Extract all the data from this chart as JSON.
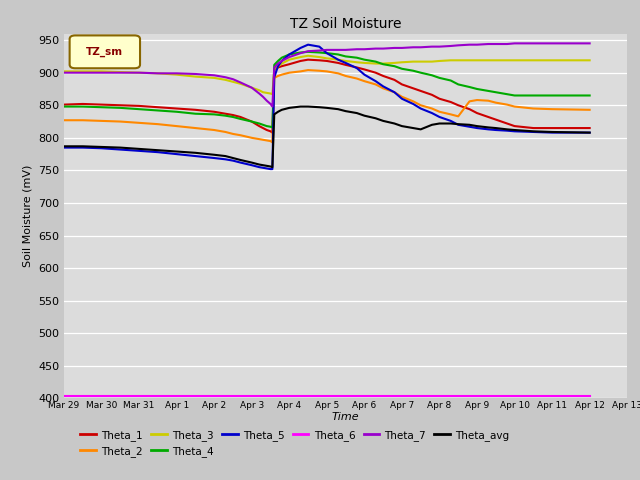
{
  "title": "TZ Soil Moisture",
  "xlabel": "Time",
  "ylabel": "Soil Moisture (mV)",
  "ylim": [
    400,
    960
  ],
  "yticks": [
    400,
    450,
    500,
    550,
    600,
    650,
    700,
    750,
    800,
    850,
    900,
    950
  ],
  "fig_bg": "#c8c8c8",
  "plot_bg": "#e0e0e0",
  "legend_label": "TZ_sm",
  "series": {
    "Theta_1": {
      "color": "#cc0000",
      "points": [
        [
          0,
          851
        ],
        [
          0.5,
          852
        ],
        [
          1.0,
          851
        ],
        [
          1.5,
          850
        ],
        [
          2.0,
          849
        ],
        [
          2.5,
          847
        ],
        [
          3.0,
          845
        ],
        [
          3.5,
          843
        ],
        [
          4.0,
          840
        ],
        [
          4.3,
          837
        ],
        [
          4.5,
          835
        ],
        [
          4.7,
          832
        ],
        [
          5.0,
          825
        ],
        [
          5.2,
          818
        ],
        [
          5.3,
          815
        ],
        [
          5.4,
          812
        ],
        [
          5.5,
          810
        ],
        [
          5.55,
          808
        ],
        [
          5.6,
          905
        ],
        [
          5.7,
          908
        ],
        [
          5.8,
          910
        ],
        [
          6.0,
          913
        ],
        [
          6.3,
          918
        ],
        [
          6.5,
          920
        ],
        [
          6.8,
          919
        ],
        [
          7.0,
          918
        ],
        [
          7.3,
          915
        ],
        [
          7.5,
          912
        ],
        [
          7.8,
          908
        ],
        [
          8.0,
          905
        ],
        [
          8.3,
          900
        ],
        [
          8.5,
          895
        ],
        [
          8.8,
          889
        ],
        [
          9.0,
          882
        ],
        [
          9.3,
          876
        ],
        [
          9.5,
          872
        ],
        [
          9.8,
          866
        ],
        [
          10.0,
          860
        ],
        [
          10.3,
          855
        ],
        [
          10.5,
          850
        ],
        [
          10.8,
          844
        ],
        [
          11.0,
          838
        ],
        [
          11.3,
          832
        ],
        [
          11.5,
          828
        ],
        [
          11.8,
          822
        ],
        [
          12.0,
          818
        ],
        [
          12.5,
          815
        ],
        [
          13.0,
          815
        ],
        [
          14.0,
          815
        ]
      ]
    },
    "Theta_2": {
      "color": "#ff8800",
      "points": [
        [
          0,
          827
        ],
        [
          0.5,
          827
        ],
        [
          1.0,
          826
        ],
        [
          1.5,
          825
        ],
        [
          2.0,
          823
        ],
        [
          2.5,
          821
        ],
        [
          3.0,
          818
        ],
        [
          3.5,
          815
        ],
        [
          4.0,
          812
        ],
        [
          4.3,
          809
        ],
        [
          4.5,
          806
        ],
        [
          4.7,
          804
        ],
        [
          5.0,
          800
        ],
        [
          5.2,
          798
        ],
        [
          5.3,
          797
        ],
        [
          5.4,
          796
        ],
        [
          5.5,
          795
        ],
        [
          5.55,
          793
        ],
        [
          5.6,
          892
        ],
        [
          5.7,
          895
        ],
        [
          5.8,
          897
        ],
        [
          6.0,
          900
        ],
        [
          6.3,
          902
        ],
        [
          6.5,
          904
        ],
        [
          6.8,
          903
        ],
        [
          7.0,
          902
        ],
        [
          7.3,
          899
        ],
        [
          7.5,
          895
        ],
        [
          7.8,
          891
        ],
        [
          8.0,
          887
        ],
        [
          8.3,
          882
        ],
        [
          8.5,
          876
        ],
        [
          8.8,
          870
        ],
        [
          9.0,
          863
        ],
        [
          9.3,
          856
        ],
        [
          9.5,
          850
        ],
        [
          9.8,
          845
        ],
        [
          10.0,
          840
        ],
        [
          10.3,
          836
        ],
        [
          10.5,
          833
        ],
        [
          10.8,
          856
        ],
        [
          11.0,
          858
        ],
        [
          11.3,
          857
        ],
        [
          11.5,
          854
        ],
        [
          11.8,
          851
        ],
        [
          12.0,
          848
        ],
        [
          12.5,
          845
        ],
        [
          13.0,
          844
        ],
        [
          14.0,
          843
        ]
      ]
    },
    "Theta_3": {
      "color": "#cccc00",
      "points": [
        [
          0,
          902
        ],
        [
          0.5,
          902
        ],
        [
          1.0,
          902
        ],
        [
          1.5,
          901
        ],
        [
          2.0,
          900
        ],
        [
          2.5,
          899
        ],
        [
          3.0,
          897
        ],
        [
          3.5,
          894
        ],
        [
          4.0,
          892
        ],
        [
          4.3,
          889
        ],
        [
          4.5,
          886
        ],
        [
          4.7,
          883
        ],
        [
          5.0,
          877
        ],
        [
          5.2,
          873
        ],
        [
          5.3,
          870
        ],
        [
          5.4,
          869
        ],
        [
          5.5,
          868
        ],
        [
          5.55,
          867
        ],
        [
          5.6,
          905
        ],
        [
          5.7,
          910
        ],
        [
          5.8,
          914
        ],
        [
          6.0,
          920
        ],
        [
          6.3,
          924
        ],
        [
          6.5,
          926
        ],
        [
          6.8,
          924
        ],
        [
          7.0,
          922
        ],
        [
          7.3,
          920
        ],
        [
          7.5,
          918
        ],
        [
          7.8,
          916
        ],
        [
          8.0,
          915
        ],
        [
          8.3,
          914
        ],
        [
          8.5,
          914
        ],
        [
          8.8,
          915
        ],
        [
          9.0,
          916
        ],
        [
          9.3,
          917
        ],
        [
          9.5,
          917
        ],
        [
          9.8,
          917
        ],
        [
          10.0,
          918
        ],
        [
          10.3,
          919
        ],
        [
          10.5,
          919
        ],
        [
          10.8,
          919
        ],
        [
          11.0,
          919
        ],
        [
          11.3,
          919
        ],
        [
          11.5,
          919
        ],
        [
          11.8,
          919
        ],
        [
          12.0,
          919
        ],
        [
          12.5,
          919
        ],
        [
          13.0,
          919
        ],
        [
          14.0,
          919
        ]
      ]
    },
    "Theta_4": {
      "color": "#00aa00",
      "points": [
        [
          0,
          848
        ],
        [
          0.5,
          848
        ],
        [
          1.0,
          847
        ],
        [
          1.5,
          846
        ],
        [
          2.0,
          844
        ],
        [
          2.5,
          842
        ],
        [
          3.0,
          840
        ],
        [
          3.5,
          837
        ],
        [
          4.0,
          836
        ],
        [
          4.3,
          834
        ],
        [
          4.5,
          832
        ],
        [
          4.7,
          829
        ],
        [
          5.0,
          825
        ],
        [
          5.2,
          822
        ],
        [
          5.3,
          820
        ],
        [
          5.4,
          818
        ],
        [
          5.5,
          817
        ],
        [
          5.55,
          816
        ],
        [
          5.6,
          912
        ],
        [
          5.7,
          918
        ],
        [
          5.8,
          923
        ],
        [
          6.0,
          928
        ],
        [
          6.3,
          931
        ],
        [
          6.5,
          932
        ],
        [
          6.8,
          931
        ],
        [
          7.0,
          930
        ],
        [
          7.3,
          928
        ],
        [
          7.5,
          925
        ],
        [
          7.8,
          923
        ],
        [
          8.0,
          920
        ],
        [
          8.3,
          917
        ],
        [
          8.5,
          913
        ],
        [
          8.8,
          910
        ],
        [
          9.0,
          906
        ],
        [
          9.3,
          903
        ],
        [
          9.5,
          900
        ],
        [
          9.8,
          896
        ],
        [
          10.0,
          892
        ],
        [
          10.3,
          888
        ],
        [
          10.5,
          882
        ],
        [
          10.8,
          878
        ],
        [
          11.0,
          875
        ],
        [
          11.3,
          872
        ],
        [
          11.5,
          870
        ],
        [
          11.8,
          867
        ],
        [
          12.0,
          865
        ],
        [
          12.5,
          865
        ],
        [
          13.0,
          865
        ],
        [
          14.0,
          865
        ]
      ]
    },
    "Theta_5": {
      "color": "#0000cc",
      "points": [
        [
          0,
          785
        ],
        [
          0.5,
          785
        ],
        [
          1.0,
          784
        ],
        [
          1.5,
          782
        ],
        [
          2.0,
          780
        ],
        [
          2.5,
          778
        ],
        [
          3.0,
          775
        ],
        [
          3.5,
          772
        ],
        [
          4.0,
          769
        ],
        [
          4.3,
          767
        ],
        [
          4.5,
          765
        ],
        [
          4.7,
          762
        ],
        [
          5.0,
          758
        ],
        [
          5.2,
          755
        ],
        [
          5.3,
          754
        ],
        [
          5.4,
          753
        ],
        [
          5.5,
          752
        ],
        [
          5.55,
          752
        ],
        [
          5.6,
          893
        ],
        [
          5.7,
          910
        ],
        [
          5.8,
          918
        ],
        [
          6.0,
          928
        ],
        [
          6.3,
          938
        ],
        [
          6.5,
          943
        ],
        [
          6.8,
          940
        ],
        [
          7.0,
          930
        ],
        [
          7.3,
          920
        ],
        [
          7.5,
          915
        ],
        [
          7.8,
          907
        ],
        [
          8.0,
          897
        ],
        [
          8.3,
          887
        ],
        [
          8.5,
          879
        ],
        [
          8.8,
          870
        ],
        [
          9.0,
          860
        ],
        [
          9.3,
          852
        ],
        [
          9.5,
          845
        ],
        [
          9.8,
          838
        ],
        [
          10.0,
          832
        ],
        [
          10.3,
          826
        ],
        [
          10.5,
          820
        ],
        [
          10.8,
          817
        ],
        [
          11.0,
          815
        ],
        [
          11.3,
          813
        ],
        [
          11.5,
          812
        ],
        [
          11.8,
          811
        ],
        [
          12.0,
          810
        ],
        [
          12.5,
          809
        ],
        [
          13.0,
          808
        ],
        [
          14.0,
          808
        ]
      ]
    },
    "Theta_6": {
      "color": "#ff00ff",
      "points": [
        [
          0,
          404
        ],
        [
          1,
          404
        ],
        [
          2,
          404
        ],
        [
          3,
          404
        ],
        [
          4,
          404
        ],
        [
          5,
          404
        ],
        [
          5.5,
          404
        ],
        [
          5.6,
          404
        ],
        [
          6,
          404
        ],
        [
          7,
          404
        ],
        [
          8,
          404
        ],
        [
          9,
          404
        ],
        [
          10,
          404
        ],
        [
          11,
          404
        ],
        [
          12,
          404
        ],
        [
          13,
          404
        ],
        [
          14,
          404
        ]
      ]
    },
    "Theta_7": {
      "color": "#9900cc",
      "points": [
        [
          0,
          900
        ],
        [
          0.5,
          900
        ],
        [
          1.0,
          900
        ],
        [
          1.5,
          900
        ],
        [
          2.0,
          900
        ],
        [
          2.5,
          899
        ],
        [
          3.0,
          899
        ],
        [
          3.5,
          898
        ],
        [
          4.0,
          896
        ],
        [
          4.3,
          893
        ],
        [
          4.5,
          890
        ],
        [
          4.7,
          885
        ],
        [
          5.0,
          877
        ],
        [
          5.2,
          868
        ],
        [
          5.3,
          863
        ],
        [
          5.4,
          857
        ],
        [
          5.5,
          852
        ],
        [
          5.55,
          848
        ],
        [
          5.6,
          908
        ],
        [
          5.7,
          914
        ],
        [
          5.8,
          918
        ],
        [
          6.0,
          924
        ],
        [
          6.3,
          930
        ],
        [
          6.5,
          933
        ],
        [
          6.8,
          934
        ],
        [
          7.0,
          935
        ],
        [
          7.3,
          935
        ],
        [
          7.5,
          935
        ],
        [
          7.8,
          936
        ],
        [
          8.0,
          936
        ],
        [
          8.3,
          937
        ],
        [
          8.5,
          937
        ],
        [
          8.8,
          938
        ],
        [
          9.0,
          938
        ],
        [
          9.3,
          939
        ],
        [
          9.5,
          939
        ],
        [
          9.8,
          940
        ],
        [
          10.0,
          940
        ],
        [
          10.3,
          941
        ],
        [
          10.5,
          942
        ],
        [
          10.8,
          943
        ],
        [
          11.0,
          943
        ],
        [
          11.3,
          944
        ],
        [
          11.5,
          944
        ],
        [
          11.8,
          944
        ],
        [
          12.0,
          945
        ],
        [
          12.5,
          945
        ],
        [
          13.0,
          945
        ],
        [
          14.0,
          945
        ]
      ]
    },
    "Theta_avg": {
      "color": "#000000",
      "points": [
        [
          0,
          787
        ],
        [
          0.5,
          787
        ],
        [
          1.0,
          786
        ],
        [
          1.5,
          785
        ],
        [
          2.0,
          783
        ],
        [
          2.5,
          781
        ],
        [
          3.0,
          779
        ],
        [
          3.5,
          777
        ],
        [
          4.0,
          774
        ],
        [
          4.3,
          772
        ],
        [
          4.5,
          769
        ],
        [
          4.7,
          766
        ],
        [
          5.0,
          762
        ],
        [
          5.2,
          759
        ],
        [
          5.3,
          758
        ],
        [
          5.4,
          757
        ],
        [
          5.5,
          756
        ],
        [
          5.55,
          755
        ],
        [
          5.6,
          836
        ],
        [
          5.7,
          840
        ],
        [
          5.8,
          843
        ],
        [
          6.0,
          846
        ],
        [
          6.3,
          848
        ],
        [
          6.5,
          848
        ],
        [
          6.8,
          847
        ],
        [
          7.0,
          846
        ],
        [
          7.3,
          844
        ],
        [
          7.5,
          841
        ],
        [
          7.8,
          838
        ],
        [
          8.0,
          834
        ],
        [
          8.3,
          830
        ],
        [
          8.5,
          826
        ],
        [
          8.8,
          822
        ],
        [
          9.0,
          818
        ],
        [
          9.3,
          815
        ],
        [
          9.5,
          813
        ],
        [
          9.8,
          820
        ],
        [
          10.0,
          822
        ],
        [
          10.3,
          822
        ],
        [
          10.5,
          821
        ],
        [
          10.8,
          820
        ],
        [
          11.0,
          818
        ],
        [
          11.3,
          816
        ],
        [
          11.5,
          815
        ],
        [
          11.8,
          813
        ],
        [
          12.0,
          812
        ],
        [
          12.5,
          810
        ],
        [
          13.0,
          809
        ],
        [
          14.0,
          808
        ]
      ]
    }
  },
  "xtick_labels": [
    "Mar 29",
    "Mar 30",
    "Mar 31",
    "Apr 1",
    "Apr 2",
    "Apr 3",
    "Apr 4",
    "Apr 5",
    "Apr 6",
    "Apr 7",
    "Apr 8",
    "Apr 9",
    "Apr 10",
    "Apr 11",
    "Apr 12",
    "Apr 13"
  ],
  "xtick_positions": [
    0,
    1,
    2,
    3,
    4,
    5,
    6,
    7,
    8,
    9,
    10,
    11,
    12,
    13,
    14,
    15
  ],
  "xlim": [
    0,
    15
  ]
}
